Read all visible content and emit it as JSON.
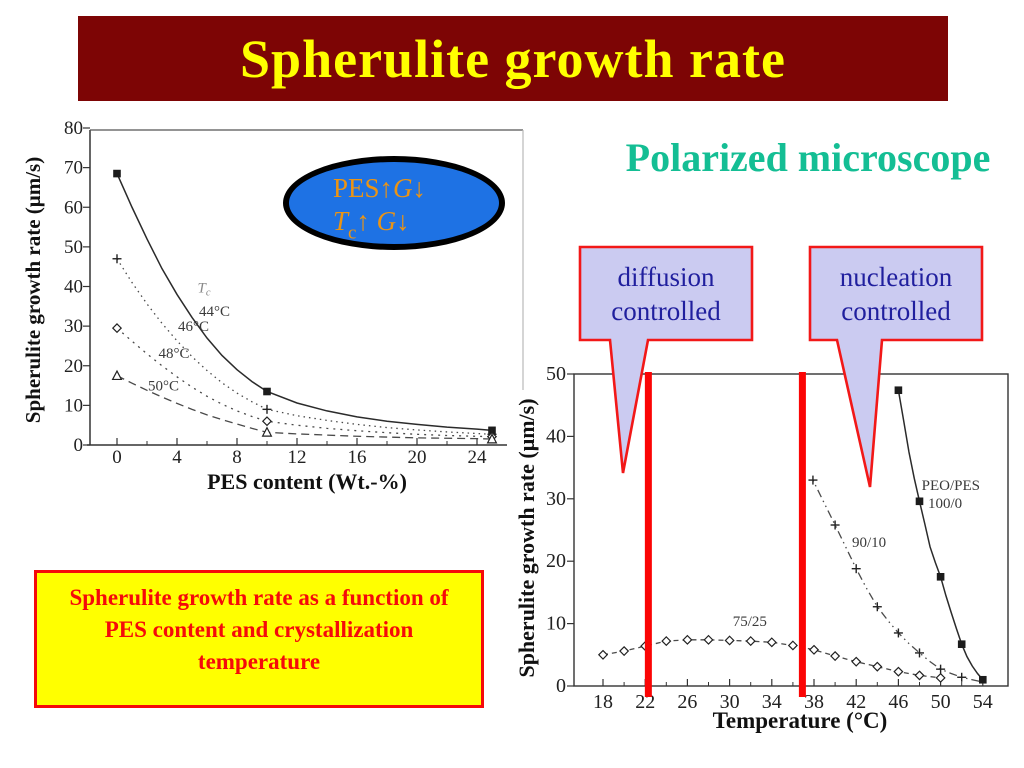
{
  "slide": {
    "title": "Spherulite growth rate",
    "subtitle": "Polarized microscope",
    "caption_lines": [
      "Spherulite growth rate as a function of",
      "PES content and crystallization",
      "temperature"
    ],
    "colors": {
      "banner_bg": "#7D0505",
      "banner_text": "#FFFF00",
      "subtitle_text": "#14BE94",
      "caption_bg": "#FFFF00",
      "caption_border": "#F50A0A",
      "caption_text": "#F50A0A",
      "callout_bg": "#CBCBF1",
      "callout_border": "#F21818",
      "callout_text": "#201F9E",
      "ellipse_bg": "#1E72E4",
      "ellipse_border": "#000000",
      "ellipse_text": "#EB9414",
      "highlight_line": "#FB0505",
      "chart_ink": "#333333",
      "chart_label": "#3A3A3A",
      "chart_faint": "#8A8A8A"
    }
  },
  "annotation_ellipse": {
    "line1": [
      {
        "t": "PES"
      },
      {
        "t": "↑"
      },
      {
        "t": "G",
        "i": 1
      },
      {
        "t": "↓"
      }
    ],
    "line2": [
      {
        "t": "T",
        "i": 1
      },
      {
        "t": "c",
        "s": 1
      },
      {
        "t": "↑ "
      },
      {
        "t": "G",
        "i": 1
      },
      {
        "t": "↓"
      }
    ]
  },
  "callouts": [
    {
      "lines": [
        "diffusion",
        "controlled"
      ]
    },
    {
      "lines": [
        "nucleation",
        "controlled"
      ]
    }
  ],
  "chart_data": [
    {
      "type": "line",
      "name": "growth-rate-vs-pes-content",
      "xlabel": "PES content (Wt.-%)",
      "ylabel": "Spherulite growth rate (μm/s)",
      "xlim": [
        -1.8,
        25.9
      ],
      "ylim": [
        0,
        80
      ],
      "xticks": [
        0,
        4,
        8,
        12,
        16,
        20,
        24
      ],
      "xminor": [
        2,
        6,
        10,
        14,
        18,
        22
      ],
      "yticks": [
        0,
        10,
        20,
        30,
        40,
        50,
        60,
        70,
        80
      ],
      "grid": false,
      "series": [
        {
          "name": "44°C",
          "marker": "square",
          "line": "solid",
          "points": [
            [
              0,
              68.5
            ],
            [
              1,
              60
            ],
            [
              2,
              52
            ],
            [
              3,
              44.5
            ],
            [
              4,
              38
            ],
            [
              5,
              32.2
            ],
            [
              6,
              27
            ],
            [
              7,
              22.6
            ],
            [
              8,
              19
            ],
            [
              9,
              16
            ],
            [
              10,
              13.5
            ],
            [
              12,
              10.6
            ],
            [
              14,
              8.6
            ],
            [
              16,
              7.1
            ],
            [
              18,
              6.0
            ],
            [
              20,
              5.2
            ],
            [
              22,
              4.5
            ],
            [
              24,
              4.0
            ],
            [
              25,
              3.7
            ]
          ],
          "markers_at": [
            [
              0,
              68.5
            ],
            [
              10,
              13.5
            ],
            [
              25,
              3.7
            ]
          ]
        },
        {
          "name": "46°C",
          "marker": "plus",
          "line": "dotted",
          "points": [
            [
              0,
              47
            ],
            [
              1,
              41
            ],
            [
              2,
              35.6
            ],
            [
              3,
              30.7
            ],
            [
              4,
              26.3
            ],
            [
              5,
              22.3
            ],
            [
              6,
              18.8
            ],
            [
              7,
              15.7
            ],
            [
              8,
              13.1
            ],
            [
              9,
              10.9
            ],
            [
              10,
              9
            ],
            [
              12,
              7.4
            ],
            [
              14,
              6.2
            ],
            [
              16,
              5.2
            ],
            [
              18,
              4.4
            ],
            [
              20,
              3.8
            ],
            [
              22,
              3.3
            ],
            [
              24,
              2.9
            ],
            [
              25,
              2.7
            ]
          ],
          "markers_at": [
            [
              0,
              47
            ],
            [
              10,
              9
            ],
            [
              25,
              2.7
            ]
          ]
        },
        {
          "name": "48°C",
          "marker": "diamond",
          "line": "dotted2",
          "points": [
            [
              0,
              29.5
            ],
            [
              1,
              26.2
            ],
            [
              2,
              23
            ],
            [
              3,
              20
            ],
            [
              4,
              17.2
            ],
            [
              5,
              14.6
            ],
            [
              6,
              12.3
            ],
            [
              7,
              10.3
            ],
            [
              8,
              8.6
            ],
            [
              9,
              7.2
            ],
            [
              10,
              6
            ],
            [
              12,
              5.0
            ],
            [
              14,
              4.2
            ],
            [
              16,
              3.6
            ],
            [
              18,
              3.1
            ],
            [
              20,
              2.7
            ],
            [
              22,
              2.4
            ],
            [
              24,
              2.2
            ],
            [
              25,
              2.1
            ]
          ],
          "markers_at": [
            [
              0,
              29.5
            ],
            [
              10,
              6
            ],
            [
              25,
              2.1
            ]
          ]
        },
        {
          "name": "50°C",
          "marker": "triangle",
          "line": "dashed",
          "points": [
            [
              0,
              17.5
            ],
            [
              1,
              15.6
            ],
            [
              2,
              13.8
            ],
            [
              3,
              12.1
            ],
            [
              4,
              10.5
            ],
            [
              5,
              9.0
            ],
            [
              6,
              7.6
            ],
            [
              7,
              6.4
            ],
            [
              8,
              5.3
            ],
            [
              9,
              4.2
            ],
            [
              10,
              3.2
            ],
            [
              12,
              2.8
            ],
            [
              14,
              2.5
            ],
            [
              16,
              2.2
            ],
            [
              18,
              2.0
            ],
            [
              20,
              1.8
            ],
            [
              22,
              1.7
            ],
            [
              24,
              1.6
            ],
            [
              25,
              1.5
            ]
          ],
          "markers_at": [
            [
              0,
              17.5
            ],
            [
              10,
              3.2
            ],
            [
              25,
              1.5
            ]
          ]
        }
      ],
      "labels": [
        {
          "text": "T",
          "sub": "c",
          "x": 5.8,
          "y": 38.5,
          "italic": true,
          "faint": true
        },
        {
          "text": "44°C",
          "x": 6.5,
          "y": 32.6
        },
        {
          "text": "46°C",
          "x": 5.1,
          "y": 28.8
        },
        {
          "text": "48°C",
          "x": 3.8,
          "y": 22.0
        },
        {
          "text": "50°C",
          "x": 3.1,
          "y": 13.7
        }
      ]
    },
    {
      "type": "line",
      "name": "growth-rate-vs-temperature",
      "xlabel": "Temperature (°C)",
      "ylabel": "Spherulite growth rate (μm/s)",
      "xlim": [
        14.9,
        56.4
      ],
      "ylim": [
        0,
        50
      ],
      "xticks": [
        18,
        22,
        26,
        30,
        34,
        38,
        42,
        46,
        50,
        54
      ],
      "xminor": [
        20,
        24,
        28,
        32,
        36,
        40,
        44,
        48,
        52
      ],
      "yticks": [
        0,
        10,
        20,
        30,
        40,
        50
      ],
      "grid": false,
      "series": [
        {
          "name": "PEO/PES 100/0",
          "marker": "square",
          "line": "solid",
          "points": [
            [
              46,
              47.4
            ],
            [
              46.5,
              42.5
            ],
            [
              47,
              37.5
            ],
            [
              47.5,
              33.3
            ],
            [
              48,
              29.6
            ],
            [
              48.5,
              26
            ],
            [
              49,
              22.3
            ],
            [
              49.5,
              19.8
            ],
            [
              50,
              17.5
            ],
            [
              50.5,
              14.5
            ],
            [
              51,
              11.8
            ],
            [
              51.5,
              9.2
            ],
            [
              52,
              6.7
            ],
            [
              52.5,
              4.7
            ],
            [
              53,
              3.2
            ],
            [
              53.5,
              2.0
            ],
            [
              54,
              1.0
            ]
          ],
          "markers_at": [
            [
              46,
              47.4
            ],
            [
              48,
              29.6
            ],
            [
              50,
              17.5
            ],
            [
              52,
              6.7
            ],
            [
              54,
              1.0
            ]
          ]
        },
        {
          "name": "90/10",
          "marker": "plus",
          "line": "dotdash",
          "points": [
            [
              37.9,
              33
            ],
            [
              39,
              29.2
            ],
            [
              40,
              25.8
            ],
            [
              41,
              22.3
            ],
            [
              42,
              18.8
            ],
            [
              43,
              15.6
            ],
            [
              44,
              12.7
            ],
            [
              45,
              10.5
            ],
            [
              46,
              8.5
            ],
            [
              47,
              6.8
            ],
            [
              48,
              5.3
            ],
            [
              49,
              3.9
            ],
            [
              50,
              2.7
            ],
            [
              51,
              2.0
            ],
            [
              52,
              1.4
            ],
            [
              53,
              1.0
            ],
            [
              53.8,
              0.7
            ]
          ],
          "markers_at": [
            [
              37.9,
              33
            ],
            [
              40,
              25.8
            ],
            [
              42,
              18.8
            ],
            [
              44,
              12.7
            ],
            [
              46,
              8.5
            ],
            [
              48,
              5.3
            ],
            [
              50,
              2.7
            ],
            [
              52,
              1.4
            ]
          ]
        },
        {
          "name": "75/25",
          "marker": "diamond",
          "line": "smalldash",
          "points": [
            [
              18,
              5.0
            ],
            [
              20,
              5.6
            ],
            [
              22,
              6.4
            ],
            [
              24,
              7.2
            ],
            [
              26,
              7.4
            ],
            [
              28,
              7.4
            ],
            [
              30,
              7.3
            ],
            [
              32,
              7.2
            ],
            [
              34,
              7.0
            ],
            [
              36,
              6.5
            ],
            [
              38,
              5.8
            ],
            [
              40,
              4.8
            ],
            [
              42,
              3.9
            ],
            [
              44,
              3.1
            ],
            [
              46,
              2.3
            ],
            [
              48,
              1.7
            ],
            [
              50,
              1.3
            ]
          ],
          "markers_at": [
            [
              18,
              5.0
            ],
            [
              20,
              5.6
            ],
            [
              22,
              6.4
            ],
            [
              24,
              7.2
            ],
            [
              26,
              7.4
            ],
            [
              28,
              7.4
            ],
            [
              30,
              7.3
            ],
            [
              32,
              7.2
            ],
            [
              34,
              7.0
            ],
            [
              36,
              6.5
            ],
            [
              38,
              5.8
            ],
            [
              40,
              4.8
            ],
            [
              42,
              3.9
            ],
            [
              44,
              3.1
            ],
            [
              46,
              2.3
            ],
            [
              48,
              1.7
            ],
            [
              50,
              1.3
            ]
          ]
        }
      ],
      "labels": [
        {
          "text": "PEO/PES",
          "x": 48.2,
          "y": 31.4,
          "anchor": "start"
        },
        {
          "text": "100/0",
          "x": 48.8,
          "y": 28.5,
          "anchor": "start"
        },
        {
          "text": "90/10",
          "x": 41.6,
          "y": 22.3,
          "anchor": "start"
        },
        {
          "text": "75/25",
          "x": 30.3,
          "y": 9.6,
          "anchor": "start"
        }
      ],
      "vlines": [
        {
          "x": 22.3
        },
        {
          "x": 36.9
        }
      ]
    }
  ]
}
